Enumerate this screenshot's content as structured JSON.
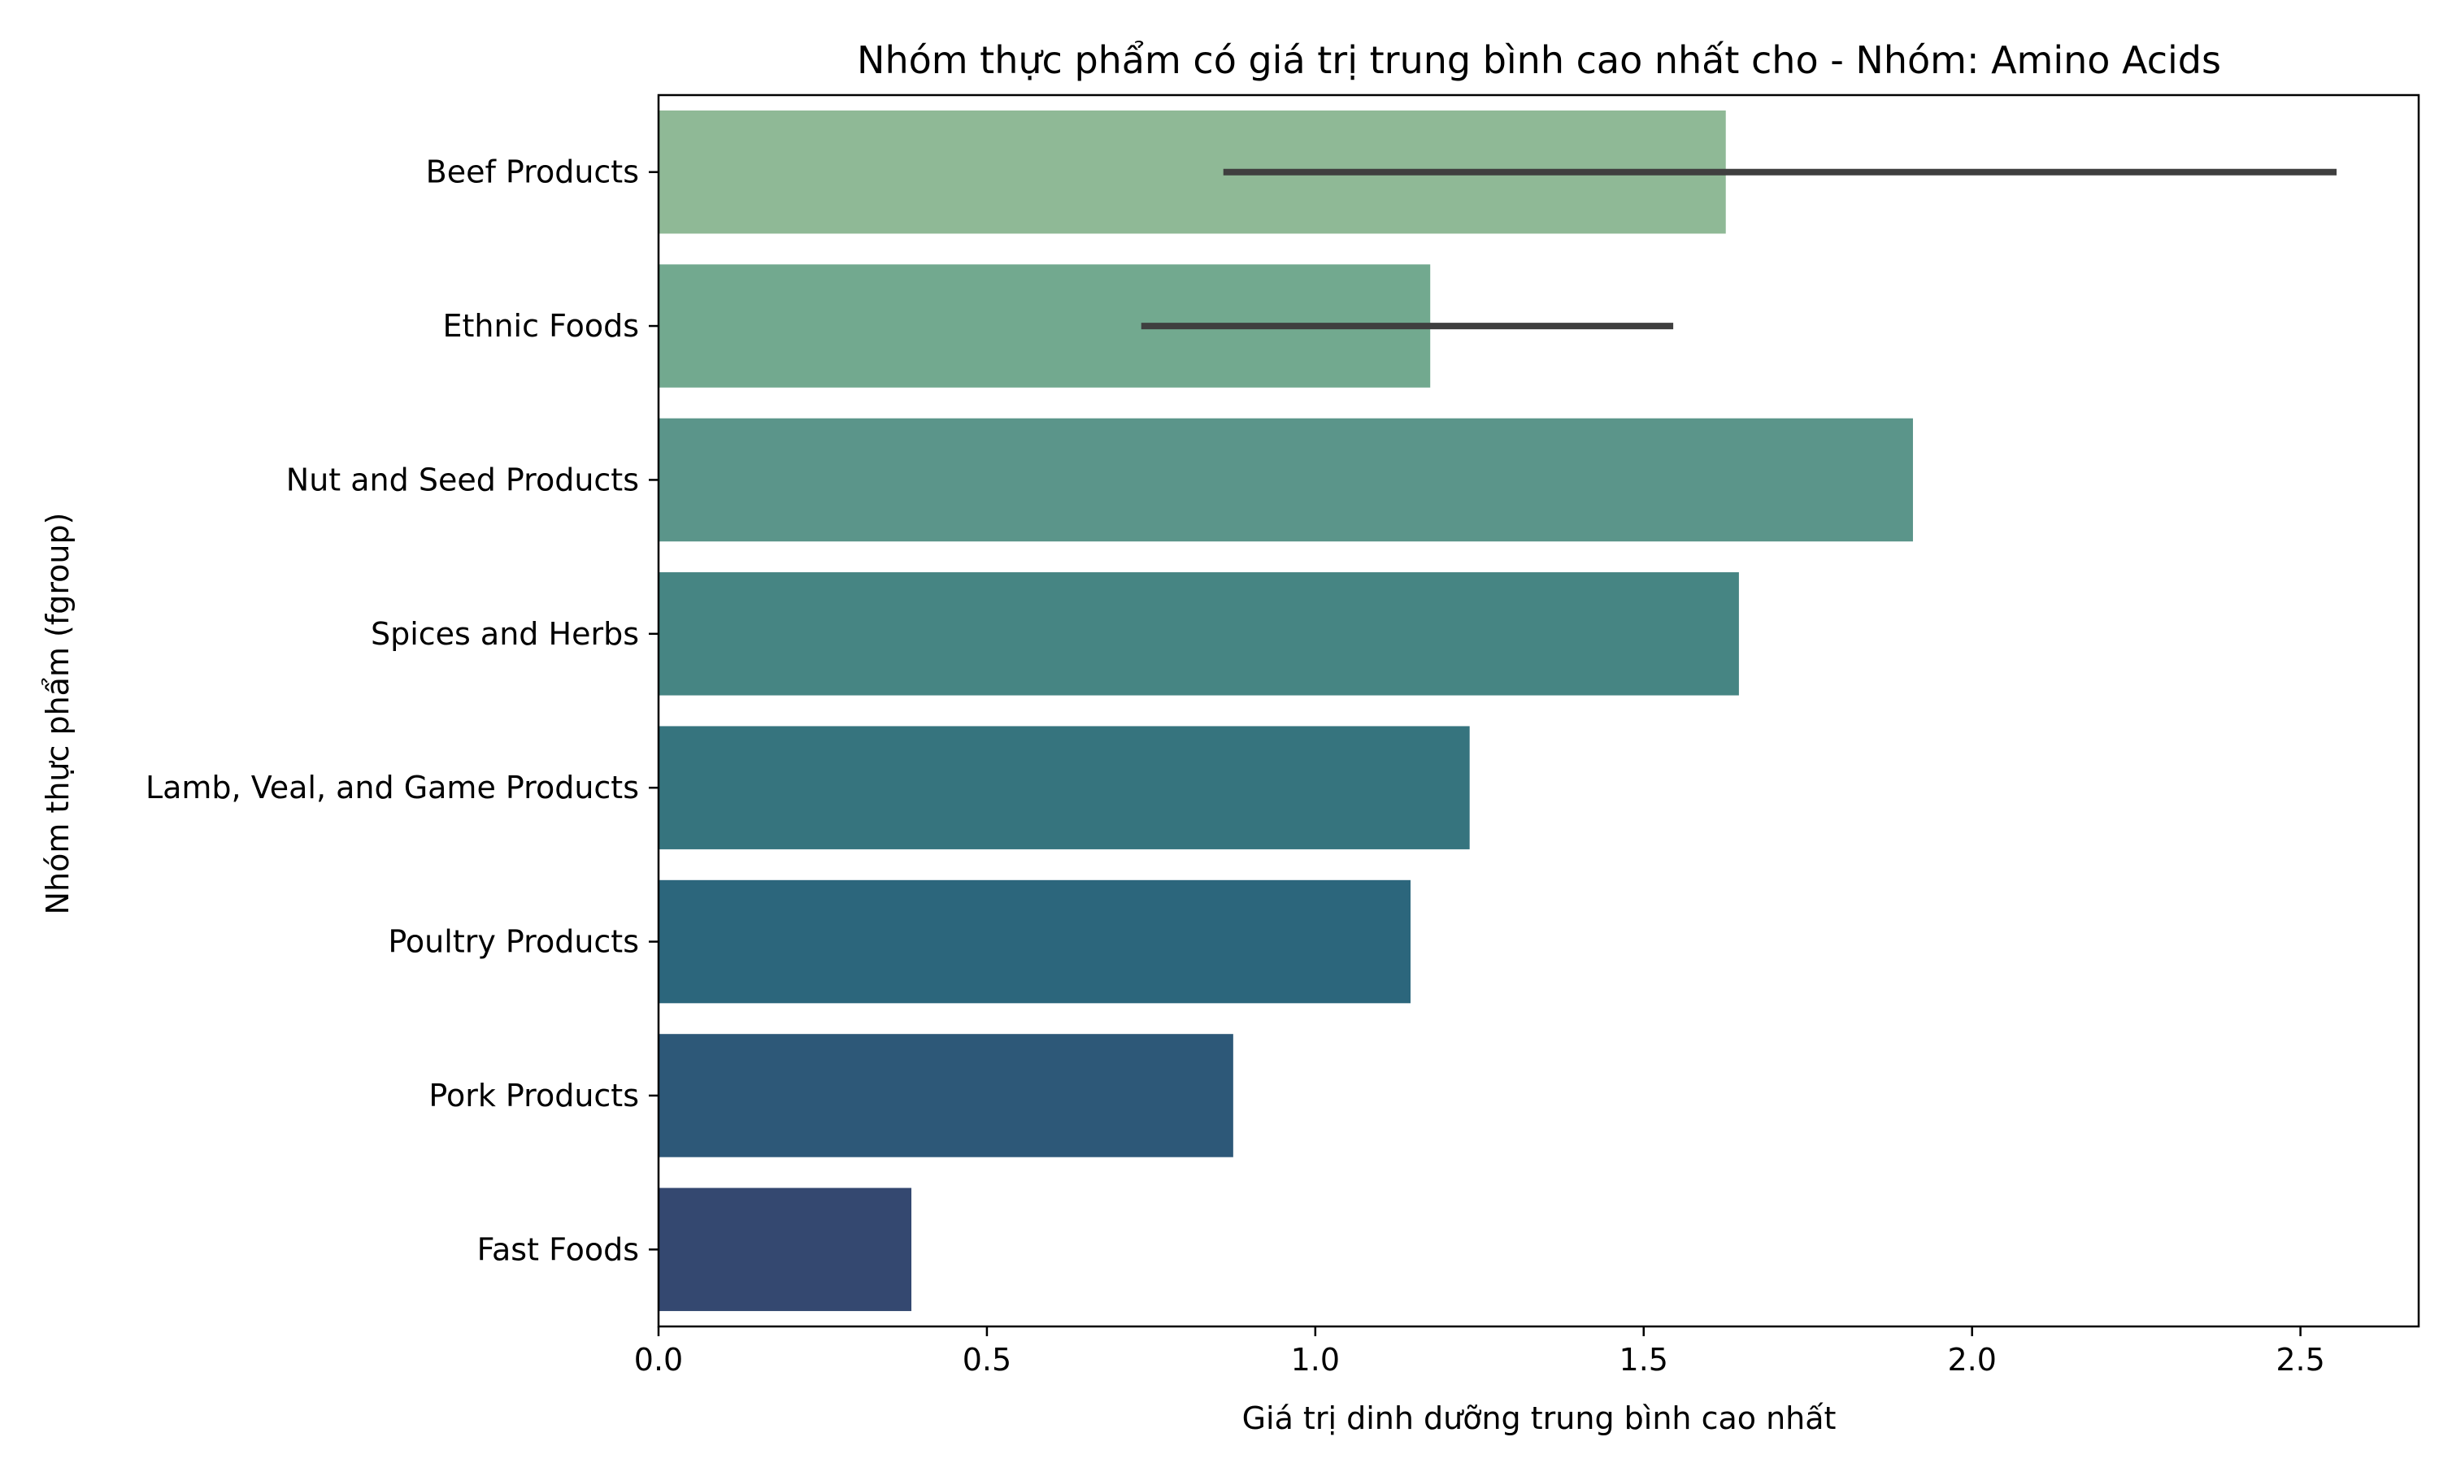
{
  "chart_data": {
    "type": "bar",
    "orientation": "horizontal",
    "title": "Nhóm thực phẩm có giá trị trung bình cao nhất cho - Nhóm: Amino Acids",
    "xlabel": "Giá trị dinh dưỡng trung bình cao nhất",
    "ylabel": "Nhóm thực phẩm (fgroup)",
    "xlim": [
      0,
      2.68
    ],
    "xticks": [
      "0.0",
      "0.5",
      "1.0",
      "1.5",
      "2.0",
      "2.5"
    ],
    "categories": [
      "Beef Products",
      "Ethnic Foods",
      "Nut and Seed Products",
      "Spices and Herbs",
      "Lamb, Veal, and Game Products",
      "Poultry Products",
      "Pork Products",
      "Fast Foods"
    ],
    "values": [
      1.625,
      1.175,
      1.91,
      1.645,
      1.235,
      1.145,
      0.875,
      0.385
    ],
    "error_bars": [
      [
        0.86,
        2.555
      ],
      [
        0.735,
        1.545
      ],
      null,
      null,
      null,
      null,
      null,
      null
    ],
    "colors": [
      "#8fb996",
      "#72a98f",
      "#5b958a",
      "#468583",
      "#36747e",
      "#2c667c",
      "#2d5878",
      "#344870"
    ],
    "error_bar_color": "#3f3f3f",
    "grid": false,
    "legend": false
  }
}
